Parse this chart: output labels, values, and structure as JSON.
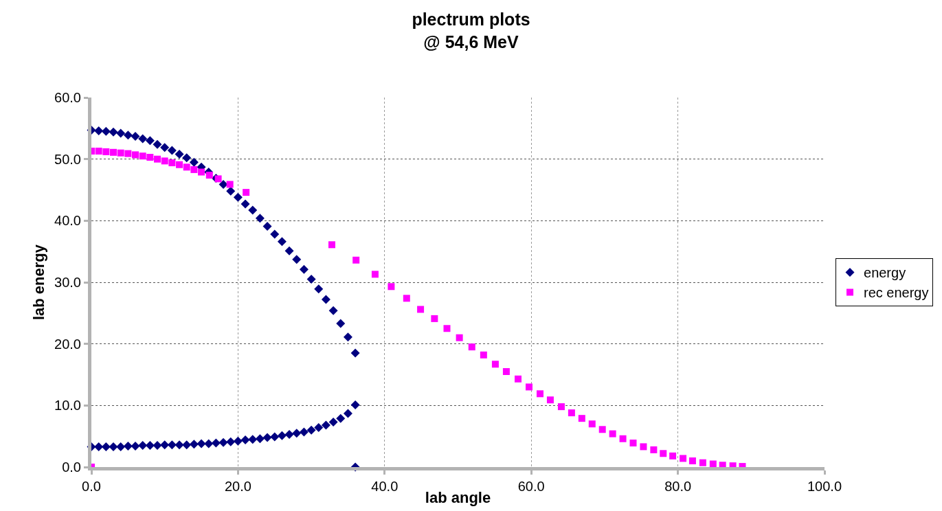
{
  "chart_data": {
    "type": "scatter",
    "title": "plectrum plots\n@ 54,6 MeV",
    "xlabel": "lab angle",
    "ylabel": "lab energy",
    "xlim": [
      0,
      100
    ],
    "ylim": [
      0,
      60
    ],
    "xticks": [
      {
        "value": 0,
        "label": "0.0"
      },
      {
        "value": 20,
        "label": "20.0"
      },
      {
        "value": 40,
        "label": "40.0"
      },
      {
        "value": 60,
        "label": "60.0"
      },
      {
        "value": 80,
        "label": "80.0"
      },
      {
        "value": 100,
        "label": "100.0"
      }
    ],
    "yticks": [
      {
        "value": 0,
        "label": "0.0"
      },
      {
        "value": 10,
        "label": "10.0"
      },
      {
        "value": 20,
        "label": "20.0"
      },
      {
        "value": 30,
        "label": "30.0"
      },
      {
        "value": 40,
        "label": "40.0"
      },
      {
        "value": 50,
        "label": "50.0"
      },
      {
        "value": 60,
        "label": "60.0"
      }
    ],
    "grid": true,
    "legend": "right",
    "series": [
      {
        "name": "energy",
        "color": "#000080",
        "marker": "diamond",
        "x": [
          0,
          1,
          2,
          3,
          4,
          5,
          6,
          7,
          8,
          9,
          10,
          11,
          12,
          13,
          14,
          15,
          16,
          17,
          18,
          19,
          20,
          21,
          22,
          23,
          24,
          25,
          26,
          27,
          28,
          29,
          30,
          31,
          32,
          33,
          34,
          35,
          36,
          36,
          0,
          1,
          2,
          3,
          4,
          5,
          6,
          7,
          8,
          9,
          10,
          11,
          12,
          13,
          14,
          15,
          16,
          17,
          18,
          19,
          20,
          21,
          22,
          23,
          24,
          25,
          26,
          27,
          28,
          29,
          30,
          31,
          32,
          33,
          34,
          35,
          36
        ],
        "values": [
          54.7,
          54.6,
          54.5,
          54.4,
          54.2,
          53.9,
          53.7,
          53.3,
          53.0,
          52.4,
          51.9,
          51.4,
          50.8,
          50.2,
          49.5,
          48.7,
          47.9,
          46.9,
          45.9,
          44.8,
          43.8,
          42.7,
          41.7,
          40.4,
          39.1,
          37.8,
          36.6,
          35.1,
          33.7,
          32.1,
          30.5,
          28.9,
          27.2,
          25.4,
          23.3,
          21.1,
          18.5,
          0,
          3.3,
          3.3,
          3.3,
          3.3,
          3.3,
          3.4,
          3.4,
          3.5,
          3.5,
          3.5,
          3.6,
          3.6,
          3.6,
          3.6,
          3.7,
          3.8,
          3.8,
          3.9,
          4.0,
          4.1,
          4.2,
          4.4,
          4.5,
          4.6,
          4.8,
          4.9,
          5.1,
          5.3,
          5.5,
          5.7,
          6.0,
          6.4,
          6.8,
          7.3,
          7.9,
          8.7,
          10.1
        ]
      },
      {
        "name": "rec energy",
        "color": "#ff00ff",
        "marker": "square",
        "x": [
          0,
          0,
          1,
          2,
          3,
          4,
          5,
          6,
          7,
          8,
          9,
          10,
          11,
          12,
          13,
          14,
          15,
          16.1,
          17.3,
          18.9,
          21.1,
          32.8,
          36.1,
          38.7,
          40.9,
          43.0,
          44.9,
          46.8,
          48.5,
          50.2,
          51.9,
          53.5,
          55.1,
          56.6,
          58.2,
          59.7,
          61.2,
          62.6,
          64.1,
          65.5,
          66.9,
          68.3,
          69.7,
          71.1,
          72.5,
          73.9,
          75.3,
          76.7,
          78.0,
          79.3,
          80.7,
          82.0,
          83.4,
          84.8,
          86.1,
          87.5,
          88.8
        ],
        "values": [
          0,
          51.3,
          51.3,
          51.2,
          51.1,
          51.0,
          50.9,
          50.7,
          50.5,
          50.3,
          50.0,
          49.7,
          49.4,
          49.1,
          48.7,
          48.3,
          47.9,
          47.4,
          46.8,
          45.9,
          44.6,
          36.1,
          33.6,
          31.3,
          29.3,
          27.4,
          25.6,
          24.1,
          22.5,
          21.0,
          19.5,
          18.2,
          16.7,
          15.5,
          14.3,
          13.0,
          11.9,
          10.9,
          9.8,
          8.8,
          7.9,
          7.0,
          6.1,
          5.4,
          4.6,
          3.9,
          3.3,
          2.8,
          2.2,
          1.8,
          1.4,
          1.0,
          0.7,
          0.5,
          0.3,
          0.2,
          0.1
        ]
      }
    ]
  }
}
